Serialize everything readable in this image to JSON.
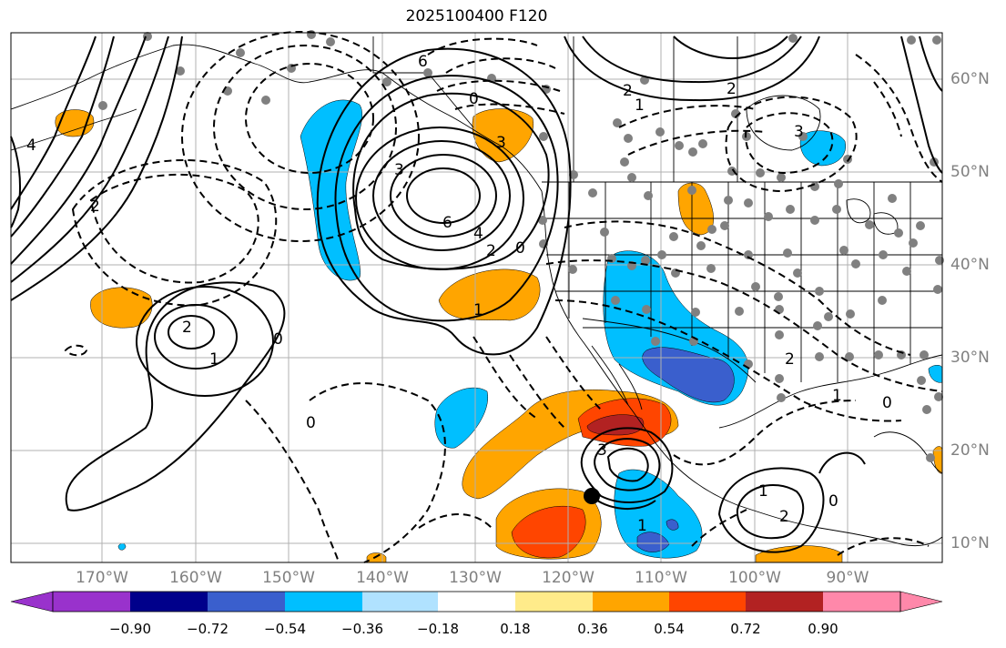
{
  "title": "2025100400 F120",
  "lat_labels": [
    "60°N",
    "50°N",
    "40°N",
    "30°N",
    "20°N",
    "10°N"
  ],
  "lon_labels": [
    "170°W",
    "160°W",
    "150°W",
    "140°W",
    "130°W",
    "120°W",
    "110°W",
    "100°W",
    "90°W"
  ],
  "colorbar": {
    "ticks": [
      "−0.90",
      "−0.72",
      "−0.54",
      "−0.36",
      "−0.18",
      "0.18",
      "0.36",
      "0.54",
      "0.72",
      "0.90"
    ],
    "colors": [
      "#9932cc",
      "#00008b",
      "#3a5fcd",
      "#00bfff",
      "#b0e2ff",
      "#ffffff",
      "#ffeb8a",
      "#ffa500",
      "#ff4500",
      "#b22222",
      "#ff88aa"
    ]
  },
  "contour_labels": [
    "6",
    "0",
    "2",
    "3",
    "1",
    "6",
    "4",
    "2",
    "0",
    "1",
    "2",
    "3",
    "2",
    "4",
    "2",
    "3",
    "1",
    "0",
    "2",
    "1",
    "0",
    "2",
    "1",
    "0",
    "3",
    "1",
    "0"
  ],
  "colors": {
    "land_line": "#000000",
    "grid": "#b0b0b0",
    "station_dot": "#808080"
  }
}
